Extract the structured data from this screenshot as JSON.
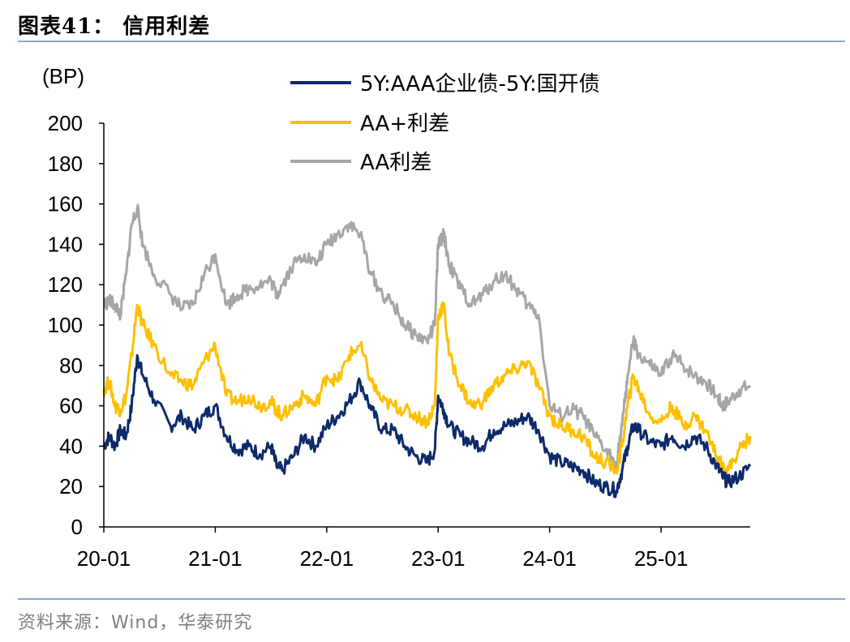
{
  "header": {
    "title": "图表41： 信用利差"
  },
  "footer": {
    "source": "资料来源：Wind，华泰研究"
  },
  "chart_data": {
    "type": "line",
    "title": "信用利差",
    "ylabel": "(BP)",
    "xlabel": "",
    "ylim": [
      0,
      200
    ],
    "yticks": [
      0,
      20,
      40,
      60,
      80,
      100,
      120,
      140,
      160,
      180,
      200
    ],
    "xlim": [
      2020.0,
      2025.8
    ],
    "xticks": [
      {
        "pos": 2020.0,
        "label": "20-01"
      },
      {
        "pos": 2021.0,
        "label": "21-01"
      },
      {
        "pos": 2022.0,
        "label": "22-01"
      },
      {
        "pos": 2023.0,
        "label": "23-01"
      },
      {
        "pos": 2024.0,
        "label": "24-01"
      },
      {
        "pos": 2025.0,
        "label": "25-01"
      }
    ],
    "legend_position": "top-right",
    "series": [
      {
        "name": "5Y:AAA企业债-5Y:国开债",
        "color": "#0d2a6b",
        "x": [
          2020.0,
          2020.05,
          2020.1,
          2020.15,
          2020.2,
          2020.25,
          2020.3,
          2020.35,
          2020.45,
          2020.6,
          2020.7,
          2020.8,
          2020.9,
          2021.0,
          2021.1,
          2021.2,
          2021.3,
          2021.4,
          2021.5,
          2021.55,
          2021.6,
          2021.7,
          2021.8,
          2021.9,
          2022.0,
          2022.1,
          2022.2,
          2022.3,
          2022.4,
          2022.5,
          2022.6,
          2022.7,
          2022.8,
          2022.9,
          2022.97,
          2023.0,
          2023.05,
          2023.1,
          2023.2,
          2023.3,
          2023.4,
          2023.5,
          2023.6,
          2023.7,
          2023.8,
          2023.9,
          2024.0,
          2024.1,
          2024.2,
          2024.3,
          2024.4,
          2024.5,
          2024.6,
          2024.65,
          2024.7,
          2024.75,
          2024.8,
          2024.9,
          2025.0,
          2025.1,
          2025.2,
          2025.3,
          2025.4,
          2025.5,
          2025.55,
          2025.6,
          2025.7,
          2025.8
        ],
        "values": [
          40,
          45,
          40,
          48,
          45,
          60,
          85,
          75,
          63,
          50,
          55,
          48,
          55,
          60,
          45,
          38,
          40,
          36,
          40,
          30,
          28,
          35,
          45,
          40,
          50,
          55,
          62,
          72,
          58,
          48,
          48,
          40,
          35,
          32,
          38,
          65,
          58,
          50,
          45,
          42,
          40,
          48,
          50,
          52,
          55,
          48,
          35,
          32,
          30,
          28,
          22,
          20,
          18,
          28,
          40,
          50,
          48,
          42,
          40,
          45,
          40,
          45,
          40,
          30,
          25,
          22,
          25,
          30
        ]
      },
      {
        "name": "AA+利差",
        "color": "#ffc000",
        "x": [
          2020.0,
          2020.05,
          2020.1,
          2020.15,
          2020.2,
          2020.25,
          2020.3,
          2020.35,
          2020.45,
          2020.6,
          2020.7,
          2020.8,
          2020.9,
          2021.0,
          2021.1,
          2021.2,
          2021.3,
          2021.4,
          2021.5,
          2021.55,
          2021.6,
          2021.7,
          2021.8,
          2021.9,
          2022.0,
          2022.1,
          2022.2,
          2022.3,
          2022.4,
          2022.5,
          2022.6,
          2022.7,
          2022.8,
          2022.9,
          2022.97,
          2023.0,
          2023.05,
          2023.1,
          2023.2,
          2023.3,
          2023.4,
          2023.5,
          2023.6,
          2023.7,
          2023.8,
          2023.9,
          2024.0,
          2024.1,
          2024.2,
          2024.3,
          2024.4,
          2024.5,
          2024.6,
          2024.65,
          2024.7,
          2024.75,
          2024.8,
          2024.9,
          2025.0,
          2025.1,
          2025.2,
          2025.3,
          2025.4,
          2025.5,
          2025.55,
          2025.6,
          2025.7,
          2025.8
        ],
        "values": [
          68,
          72,
          60,
          58,
          65,
          85,
          110,
          100,
          90,
          75,
          72,
          70,
          82,
          90,
          65,
          62,
          65,
          60,
          62,
          58,
          55,
          60,
          65,
          60,
          75,
          72,
          85,
          90,
          72,
          62,
          60,
          58,
          55,
          52,
          60,
          105,
          110,
          85,
          70,
          60,
          62,
          70,
          75,
          78,
          82,
          70,
          55,
          50,
          48,
          45,
          35,
          32,
          28,
          40,
          60,
          75,
          68,
          55,
          52,
          60,
          50,
          55,
          48,
          35,
          30,
          28,
          38,
          45
        ]
      },
      {
        "name": "AA利差",
        "color": "#a6a6a6",
        "x": [
          2020.0,
          2020.05,
          2020.1,
          2020.15,
          2020.2,
          2020.25,
          2020.3,
          2020.35,
          2020.45,
          2020.6,
          2020.7,
          2020.8,
          2020.9,
          2021.0,
          2021.1,
          2021.2,
          2021.3,
          2021.4,
          2021.5,
          2021.55,
          2021.6,
          2021.7,
          2021.8,
          2021.9,
          2022.0,
          2022.1,
          2022.2,
          2022.3,
          2022.4,
          2022.5,
          2022.6,
          2022.7,
          2022.8,
          2022.9,
          2022.97,
          2023.0,
          2023.05,
          2023.1,
          2023.2,
          2023.3,
          2023.4,
          2023.5,
          2023.6,
          2023.7,
          2023.8,
          2023.9,
          2024.0,
          2024.1,
          2024.2,
          2024.3,
          2024.4,
          2024.5,
          2024.6,
          2024.65,
          2024.7,
          2024.75,
          2024.8,
          2024.9,
          2025.0,
          2025.1,
          2025.2,
          2025.3,
          2025.4,
          2025.5,
          2025.55,
          2025.6,
          2025.7,
          2025.8
        ],
        "values": [
          110,
          112,
          110,
          105,
          125,
          150,
          158,
          140,
          125,
          115,
          108,
          110,
          125,
          135,
          110,
          115,
          118,
          120,
          122,
          115,
          120,
          130,
          135,
          130,
          140,
          145,
          150,
          145,
          125,
          115,
          110,
          100,
          95,
          92,
          100,
          140,
          145,
          130,
          118,
          110,
          115,
          122,
          125,
          118,
          110,
          105,
          60,
          55,
          58,
          55,
          45,
          38,
          32,
          50,
          75,
          92,
          85,
          80,
          75,
          85,
          80,
          75,
          72,
          65,
          60,
          62,
          68,
          70
        ]
      }
    ]
  }
}
